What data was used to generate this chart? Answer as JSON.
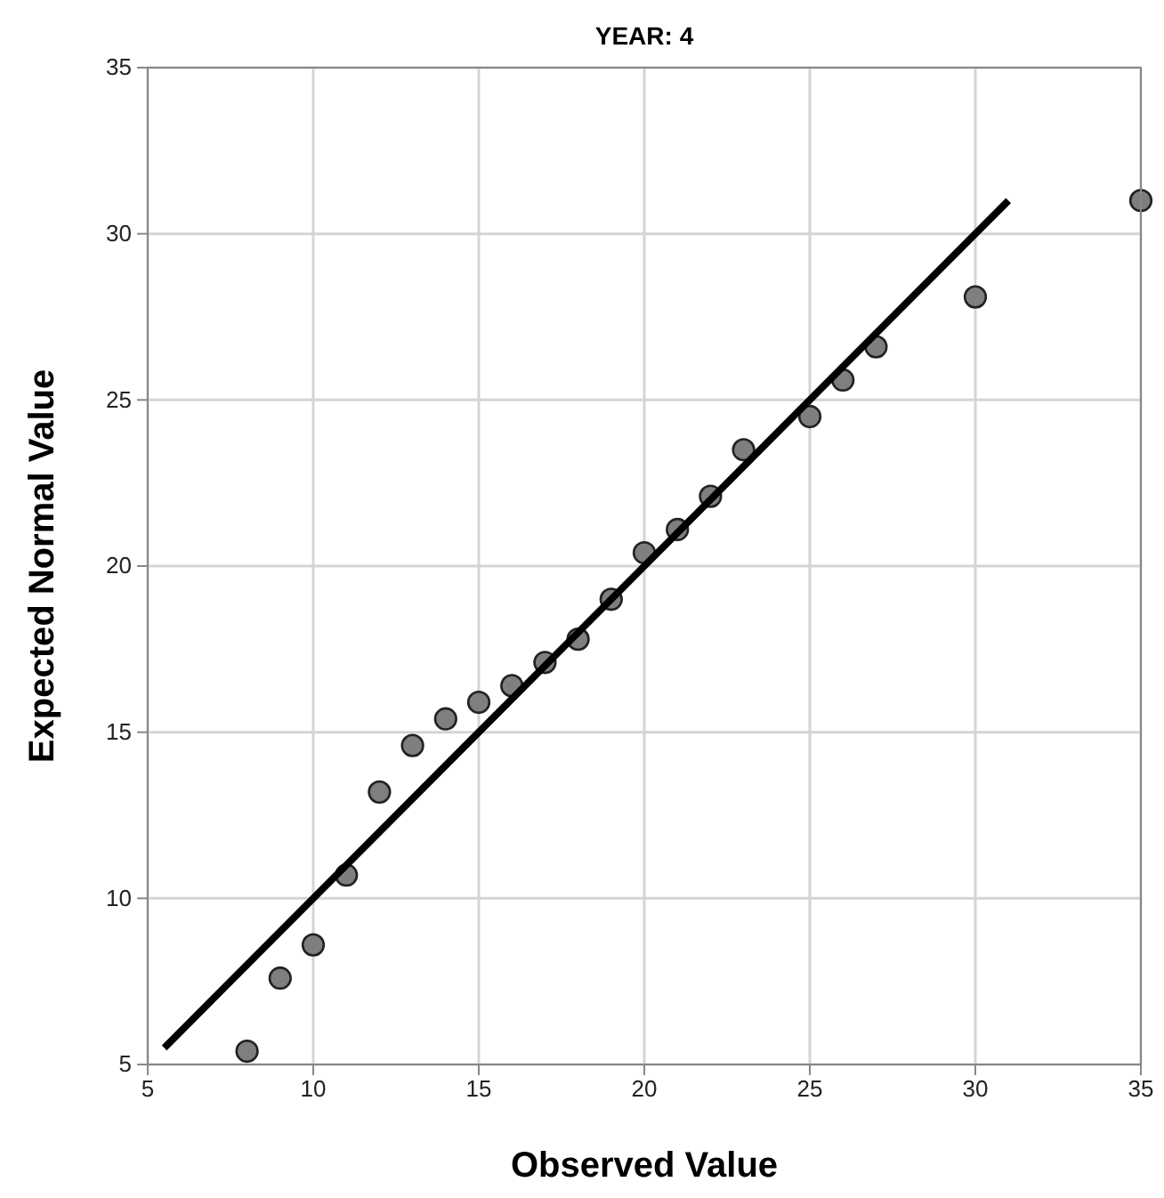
{
  "chart_data": {
    "type": "scatter",
    "title": "YEAR: 4",
    "xlabel": "Observed Value",
    "ylabel": "Expected Normal Value",
    "xlim": [
      5,
      35
    ],
    "ylim": [
      5,
      35
    ],
    "xticks": [
      5,
      10,
      15,
      20,
      25,
      30,
      35
    ],
    "yticks": [
      5,
      10,
      15,
      20,
      25,
      30,
      35
    ],
    "grid": true,
    "series": [
      {
        "color": "#7f7f7f",
        "marker": "circle",
        "x": [
          8,
          9,
          10,
          11,
          12,
          13,
          14,
          15,
          16,
          17,
          18,
          19,
          20,
          21,
          22,
          23,
          25,
          26,
          27,
          30,
          35
        ],
        "values": [
          5.4,
          7.6,
          8.6,
          10.7,
          13.2,
          14.6,
          15.4,
          15.9,
          16.4,
          17.1,
          17.8,
          19.0,
          20.4,
          21.1,
          22.1,
          23.5,
          24.5,
          25.6,
          26.6,
          28.1,
          31.0
        ]
      },
      {
        "type": "line",
        "color": "#000000",
        "marker": "none",
        "x": [
          5.5,
          31
        ],
        "values": [
          5.5,
          31
        ]
      }
    ]
  }
}
